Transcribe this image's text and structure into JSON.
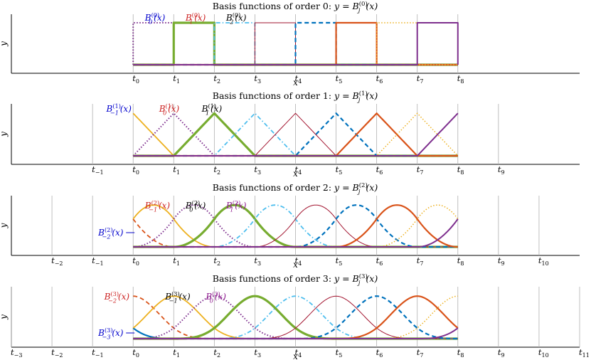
{
  "figure": {
    "description_colors": {
      "blue": "#0072BD",
      "red": "#D95319",
      "yellow": "#EDB120",
      "purple": "#7E2F8E",
      "green": "#77AC30",
      "cyan": "#4DBEEE",
      "maroon": "#A2142F",
      "label_blue": "#0000CC",
      "label_red": "#CC2222",
      "label_black": "#000000",
      "label_purple": "#8E1A8E",
      "grid": "#B0B0B0"
    }
  },
  "chart_data": [
    {
      "type": "line",
      "order": 0,
      "title": "Basis functions of order 0: y = B_j^(0)(x)",
      "title_main": "Basis functions of order 0:",
      "title_math": "y = B",
      "title_sub": "j",
      "title_sup": "(0)",
      "title_tail": "(x)",
      "xlabel": "x",
      "ylabel": "y",
      "xlim": [
        -3,
        11
      ],
      "ylim": [
        0,
        1
      ],
      "grid": "vertical lines at knots",
      "knots_shown": [
        0,
        1,
        2,
        3,
        4,
        5,
        6,
        7,
        8
      ],
      "knot_labels": [
        {
          "base": "t",
          "sub": "0",
          "x": 0
        },
        {
          "base": "t",
          "sub": "1",
          "x": 1
        },
        {
          "base": "t",
          "sub": "2",
          "x": 2
        },
        {
          "base": "t",
          "sub": "3",
          "x": 3
        },
        {
          "base": "t",
          "sub": "4",
          "x": 4
        },
        {
          "base": "t",
          "sub": "5",
          "x": 5
        },
        {
          "base": "t",
          "sub": "6",
          "x": 6
        },
        {
          "base": "t",
          "sub": "7",
          "x": 7
        },
        {
          "base": "t",
          "sub": "8",
          "x": 8
        }
      ],
      "series": [
        {
          "name": "B_0^(0)(x)",
          "j": 0
        },
        {
          "name": "B_1^(0)(x)",
          "j": 1
        },
        {
          "name": "B_2^(0)(x)",
          "j": 2
        },
        {
          "j": 3
        },
        {
          "j": 4
        },
        {
          "j": 5
        },
        {
          "j": 6
        },
        {
          "j": 7
        }
      ],
      "annotations": [
        {
          "sub": "0",
          "sup": "(0)",
          "color": "label_blue",
          "x": 0.5
        },
        {
          "sub": "1",
          "sup": "(0)",
          "color": "label_red",
          "x": 1.5
        },
        {
          "sub": "2",
          "sup": "(0)",
          "color": "label_black",
          "x": 2.5
        }
      ]
    },
    {
      "type": "line",
      "order": 1,
      "title": "Basis functions of order 1: y = B_j^(1)(x)",
      "title_main": "Basis functions of order 1:",
      "title_math": "y = B",
      "title_sub": "j",
      "title_sup": "(1)",
      "title_tail": "(x)",
      "xlabel": "x",
      "ylabel": "y",
      "xlim": [
        -3,
        11
      ],
      "ylim": [
        0,
        1
      ],
      "knots_shown": [
        -1,
        0,
        1,
        2,
        3,
        4,
        5,
        6,
        7,
        8,
        9
      ],
      "knot_labels": [
        {
          "base": "t",
          "sub": "−1",
          "x": -1
        },
        {
          "base": "t",
          "sub": "0",
          "x": 0
        },
        {
          "base": "t",
          "sub": "1",
          "x": 1
        },
        {
          "base": "t",
          "sub": "2",
          "x": 2
        },
        {
          "base": "t",
          "sub": "3",
          "x": 3
        },
        {
          "base": "t",
          "sub": "4",
          "x": 4
        },
        {
          "base": "t",
          "sub": "5",
          "x": 5
        },
        {
          "base": "t",
          "sub": "6",
          "x": 6
        },
        {
          "base": "t",
          "sub": "7",
          "x": 7
        },
        {
          "base": "t",
          "sub": "8",
          "x": 8
        },
        {
          "base": "t",
          "sub": "9",
          "x": 9
        }
      ],
      "series": [
        {
          "name": "B_-1^(1)(x)",
          "j": -1
        },
        {
          "name": "B_0^(1)(x)",
          "j": 0
        },
        {
          "name": "B_1^(1)(x)",
          "j": 1
        },
        {
          "j": 2
        },
        {
          "j": 3
        },
        {
          "j": 4
        },
        {
          "j": 5
        },
        {
          "j": 6
        },
        {
          "j": 7
        }
      ],
      "annotations": [
        {
          "sub": "−1",
          "sup": "(1)",
          "color": "label_blue",
          "x": -0.45
        },
        {
          "sub": "0",
          "sup": "(1)",
          "color": "label_red",
          "x": 0.85
        },
        {
          "sub": "1",
          "sup": "(1)",
          "color": "label_black",
          "x": 1.9
        }
      ]
    },
    {
      "type": "line",
      "order": 2,
      "title": "Basis functions of order 2: y = B_j^(2)(x)",
      "title_main": "Basis functions of order 2:",
      "title_math": "y = B",
      "title_sub": "j",
      "title_sup": "(2)",
      "title_tail": "(x)",
      "xlabel": "x",
      "ylabel": "y",
      "xlim": [
        -3,
        11
      ],
      "ylim": [
        0,
        1
      ],
      "knots_shown": [
        -2,
        -1,
        0,
        1,
        2,
        3,
        4,
        5,
        6,
        7,
        8,
        9,
        10
      ],
      "knot_labels": [
        {
          "base": "t",
          "sub": "−2",
          "x": -2
        },
        {
          "base": "t",
          "sub": "−1",
          "x": -1
        },
        {
          "base": "t",
          "sub": "0",
          "x": 0
        },
        {
          "base": "t",
          "sub": "1",
          "x": 1
        },
        {
          "base": "t",
          "sub": "2",
          "x": 2
        },
        {
          "base": "t",
          "sub": "3",
          "x": 3
        },
        {
          "base": "t",
          "sub": "4",
          "x": 4
        },
        {
          "base": "t",
          "sub": "5",
          "x": 5
        },
        {
          "base": "t",
          "sub": "6",
          "x": 6
        },
        {
          "base": "t",
          "sub": "7",
          "x": 7
        },
        {
          "base": "t",
          "sub": "8",
          "x": 8
        },
        {
          "base": "t",
          "sub": "9",
          "x": 9
        },
        {
          "base": "t",
          "sub": "10",
          "x": 10
        }
      ],
      "series": [
        {
          "name": "B_-2^(2)(x)",
          "j": -2
        },
        {
          "name": "B_-1^(2)(x)",
          "j": -1
        },
        {
          "name": "B_0^(2)(x)",
          "j": 0
        },
        {
          "name": "B_1^(2)(x)",
          "j": 1
        },
        {
          "j": 2
        },
        {
          "j": 3
        },
        {
          "j": 4
        },
        {
          "j": 5
        },
        {
          "j": 6
        },
        {
          "j": 7
        }
      ],
      "annotations": [
        {
          "sub": "−2",
          "sup": "(2)",
          "color": "label_blue",
          "x": -0.95,
          "arrow": true
        },
        {
          "sub": "−1",
          "sup": "(2)",
          "color": "label_red",
          "x": 0.5
        },
        {
          "sub": "0",
          "sup": "(2)",
          "color": "label_black",
          "x": 1.5
        },
        {
          "sub": "1",
          "sup": "(2)",
          "color": "label_purple",
          "x": 2.5
        }
      ]
    },
    {
      "type": "line",
      "order": 3,
      "title": "Basis functions of order 3: y = B_j^(3)(x)",
      "title_main": "Basis functions of order 3:",
      "title_math": "y = B",
      "title_sub": "j",
      "title_sup": "(3)",
      "title_tail": "(x)",
      "xlabel": "x",
      "ylabel": "y",
      "xlim": [
        -3,
        11
      ],
      "ylim": [
        0,
        1
      ],
      "knots_shown": [
        -3,
        -2,
        -1,
        0,
        1,
        2,
        3,
        4,
        5,
        6,
        7,
        8,
        9,
        10,
        11
      ],
      "knot_labels": [
        {
          "base": "t",
          "sub": "−3",
          "x": -3
        },
        {
          "base": "t",
          "sub": "−2",
          "x": -2
        },
        {
          "base": "t",
          "sub": "−1",
          "x": -1
        },
        {
          "base": "t",
          "sub": "0",
          "x": 0
        },
        {
          "base": "t",
          "sub": "1",
          "x": 1
        },
        {
          "base": "t",
          "sub": "2",
          "x": 2
        },
        {
          "base": "t",
          "sub": "3",
          "x": 3
        },
        {
          "base": "t",
          "sub": "4",
          "x": 4
        },
        {
          "base": "t",
          "sub": "5",
          "x": 5
        },
        {
          "base": "t",
          "sub": "6",
          "x": 6
        },
        {
          "base": "t",
          "sub": "7",
          "x": 7
        },
        {
          "base": "t",
          "sub": "8",
          "x": 8
        },
        {
          "base": "t",
          "sub": "9",
          "x": 9
        },
        {
          "base": "t",
          "sub": "10",
          "x": 10
        },
        {
          "base": "t",
          "sub": "11",
          "x": 11
        }
      ],
      "series": [
        {
          "name": "B_-3^(3)(x)",
          "j": -3
        },
        {
          "name": "B_-2^(3)(x)",
          "j": -2
        },
        {
          "name": "B_-1^(3)(x)",
          "j": -1
        },
        {
          "name": "B_0^(3)(x)",
          "j": 0
        },
        {
          "j": 1
        },
        {
          "j": 2
        },
        {
          "j": 3
        },
        {
          "j": 4
        },
        {
          "j": 5
        },
        {
          "j": 6
        },
        {
          "j": 7
        }
      ],
      "annotations": [
        {
          "sub": "−3",
          "sup": "(3)",
          "color": "label_blue",
          "x": -0.95,
          "arrow": true
        },
        {
          "sub": "−2",
          "sup": "(3)",
          "color": "label_red",
          "x": -0.5
        },
        {
          "sub": "−1",
          "sup": "(3)",
          "color": "label_black",
          "x": 1.0
        },
        {
          "sub": "0",
          "sup": "(3)",
          "color": "label_purple",
          "x": 2.0
        }
      ]
    }
  ]
}
